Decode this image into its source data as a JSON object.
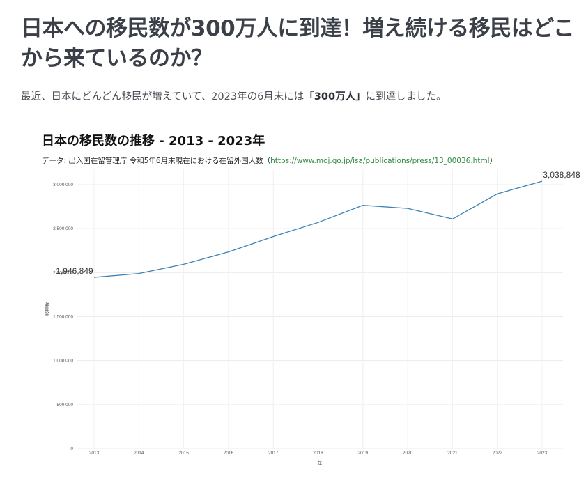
{
  "article": {
    "headline": "日本への移民数が300万人に到達！増え続ける移民はどこから来ているのか？",
    "lede_before": "最近、日本にどんどん移民が増えていて、2023年の6月末には",
    "lede_emphasis": "「300万人」",
    "lede_after": "に到達しました。"
  },
  "source": {
    "prefix": "データ: 出入国在留管理庁 令和5年6月末現在における在留外国人数（",
    "link_text": "https://www.moj.go.jp/isa/publications/press/13_00036.html",
    "suffix": "）"
  },
  "chart_data": {
    "type": "line",
    "title": "日本の移民数の推移 - 2013 - 2023年",
    "xlabel": "年",
    "ylabel": "移民数",
    "x": [
      2013,
      2014,
      2015,
      2016,
      2017,
      2018,
      2019,
      2020,
      2021,
      2022,
      2023
    ],
    "y": [
      1946849,
      1990000,
      2095000,
      2235000,
      2410000,
      2570000,
      2765000,
      2730000,
      2610000,
      2895000,
      3038848
    ],
    "ylim": [
      0,
      3000000
    ],
    "yticks": [
      0,
      500000,
      1000000,
      1500000,
      2000000,
      2500000,
      3000000
    ],
    "ytick_labels": [
      "0",
      "500,000",
      "1,000,000",
      "1,500,000",
      "2,000,000",
      "2,500,000",
      "3,000,000"
    ],
    "annotations": [
      {
        "x": 2013,
        "label": "1,946,849"
      },
      {
        "x": 2023,
        "label": "3,038,848"
      }
    ],
    "line_color": "#3b82b5",
    "grid": true
  }
}
